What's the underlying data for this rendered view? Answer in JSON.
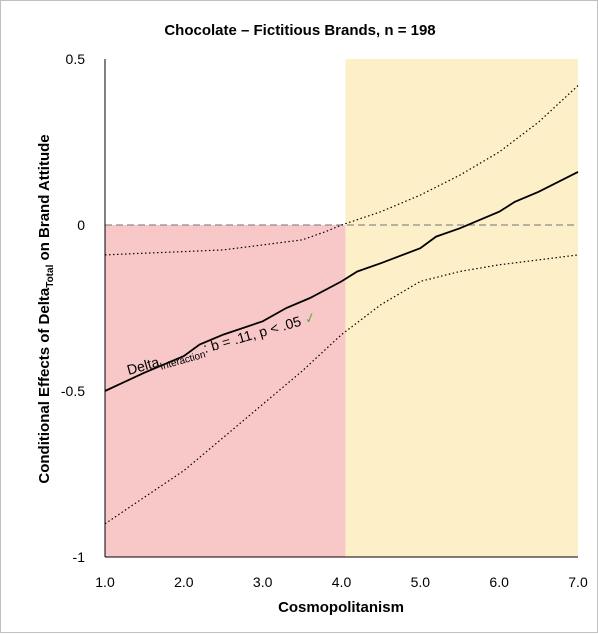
{
  "chart_data": {
    "type": "line",
    "title": "Chocolate – Fictitious Brands, n = 198",
    "xlabel": "Cosmopolitanism",
    "ylabel_main": "Conditional Effects of Delta",
    "ylabel_sub": "Total",
    "ylabel_tail": " on Brand Attitude",
    "xlim": [
      1.0,
      7.0
    ],
    "ylim": [
      -1.0,
      0.5
    ],
    "x_ticks": [
      "1.0",
      "2.0",
      "3.0",
      "4.0",
      "5.0",
      "6.0",
      "7.0"
    ],
    "x_tick_values": [
      1,
      2,
      3,
      4,
      5,
      6,
      7
    ],
    "y_ticks": [
      "0.5",
      "0",
      "-0.5",
      "-1"
    ],
    "y_tick_values": [
      0.5,
      0,
      -0.5,
      -1
    ],
    "regions": [
      {
        "name": "non-significant-negative",
        "x_from": 1.0,
        "x_to": 4.05,
        "y_from": -1.0,
        "y_to": 0.0,
        "color": "#f8c8c8"
      },
      {
        "name": "non-significant-positive",
        "x_from": 4.05,
        "x_to": 7.0,
        "y_from": -1.0,
        "y_to": 0.5,
        "color": "#fdefc8"
      }
    ],
    "reference_line": {
      "y": 0,
      "style": "dashed",
      "color": "#8c8c8c"
    },
    "series": [
      {
        "role": "effect",
        "style": "solid",
        "x": [
          1.0,
          1.5,
          2.0,
          2.2,
          2.5,
          3.0,
          3.3,
          3.6,
          4.0,
          4.2,
          4.5,
          5.0,
          5.2,
          5.5,
          6.0,
          6.2,
          6.5,
          7.0
        ],
        "y": [
          -0.5,
          -0.445,
          -0.395,
          -0.36,
          -0.33,
          -0.29,
          -0.25,
          -0.22,
          -0.17,
          -0.14,
          -0.115,
          -0.07,
          -0.035,
          -0.01,
          0.04,
          0.07,
          0.1,
          0.16
        ]
      },
      {
        "role": "upper-ci",
        "style": "dotted",
        "x": [
          1.0,
          1.5,
          2.0,
          2.5,
          3.0,
          3.5,
          3.8,
          4.0,
          4.5,
          5.0,
          5.5,
          6.0,
          6.5,
          7.0
        ],
        "y": [
          -0.09,
          -0.085,
          -0.08,
          -0.075,
          -0.06,
          -0.045,
          -0.02,
          0.0,
          0.04,
          0.09,
          0.15,
          0.22,
          0.31,
          0.42
        ]
      },
      {
        "role": "lower-ci",
        "style": "dotted",
        "x": [
          1.0,
          1.5,
          2.0,
          2.5,
          3.0,
          3.5,
          4.0,
          4.5,
          5.0,
          5.5,
          6.0,
          6.5,
          7.0
        ],
        "y": [
          -0.9,
          -0.82,
          -0.74,
          -0.64,
          -0.54,
          -0.44,
          -0.33,
          -0.24,
          -0.17,
          -0.14,
          -0.12,
          -0.105,
          -0.09
        ]
      }
    ],
    "annotation": {
      "prefix": "Delta",
      "sub": "Interaction",
      "text": ": b = .11, p < .05",
      "check": "✓",
      "check_color": "#6aa84f",
      "rotation_deg": -16
    }
  }
}
